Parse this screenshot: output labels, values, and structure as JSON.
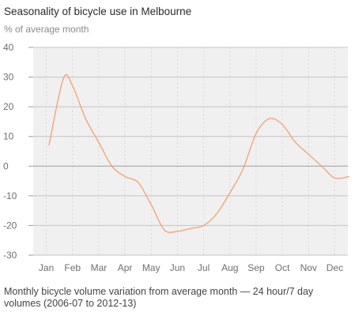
{
  "chart_data": {
    "type": "line",
    "title": "Seasonality of bicycle use in Melbourne",
    "ylabel": "% of average month",
    "caption": "Monthly bicycle volume variation from average month — 24 hour/7 day volumes (2006-07 to 2012-13)",
    "categories": [
      "Jan",
      "Feb",
      "Mar",
      "Apr",
      "May",
      "Jun",
      "Jul",
      "Aug",
      "Sep",
      "Oct",
      "Nov",
      "Dec"
    ],
    "yticks": [
      "40",
      "30",
      "20",
      "10",
      "0",
      "-10",
      "-20",
      "-30"
    ],
    "ylim": [
      -30,
      40
    ],
    "grid": true,
    "x": [
      0.1,
      0.65,
      1.0,
      1.5,
      2.0,
      2.5,
      3.0,
      3.5,
      4.0,
      4.5,
      5.0,
      5.5,
      6.0,
      6.5,
      7.0,
      7.5,
      8.0,
      8.5,
      9.0,
      9.5,
      10.0,
      10.5,
      11.0,
      11.55
    ],
    "values": [
      7,
      29.5,
      27,
      16,
      8,
      0,
      -3.5,
      -5.5,
      -13,
      -21.5,
      -22,
      -21,
      -20,
      -16,
      -9,
      -1,
      11,
      16,
      14,
      8,
      4,
      0,
      -4,
      -3.5
    ],
    "series_color": "#f5a06e"
  }
}
